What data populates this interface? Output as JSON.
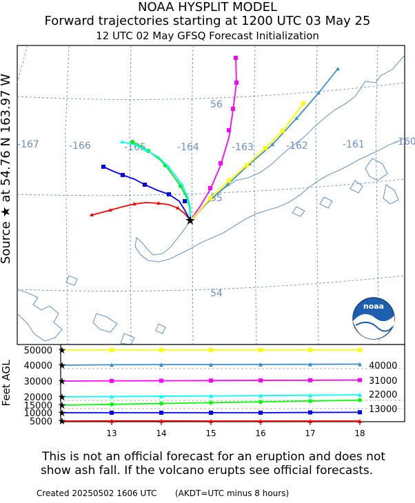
{
  "header": {
    "title_line1": "NOAA HYSPLIT MODEL",
    "title_line2": "Forward trajectories starting at 1200 UTC 03 May 25",
    "title_line3": "12 UTC 02 May    GFSQ  Forecast Initialization"
  },
  "side_label": "Source ★  at   54.76 N  163.97 W",
  "map": {
    "lon_labels": [
      "-167",
      "-166",
      "-165",
      "-164",
      "-163",
      "-162",
      "-161",
      "-160"
    ],
    "lat_labels": [
      "56",
      "55",
      "54"
    ],
    "logo_text": "noaa"
  },
  "chart_data": {
    "type": "line",
    "panel": "height",
    "x": [
      12,
      13,
      14,
      15,
      16,
      17,
      18
    ],
    "x_ticks": [
      "13",
      "14",
      "15",
      "16",
      "17",
      "18"
    ],
    "y_axis_label": "Feet AGL",
    "y_ticks": [
      "50000",
      "40000",
      "30000",
      "20000",
      "15000",
      "10000",
      "5000"
    ],
    "right_labels": [
      "40000",
      "31000",
      "22000",
      "13000"
    ],
    "series": [
      {
        "color": "#ff0000",
        "marker": "triangle",
        "values": [
          5000,
          5100,
          5100,
          5000,
          5000,
          4900,
          4800
        ]
      },
      {
        "color": "#0000ff",
        "marker": "square",
        "values": [
          10000,
          10000,
          10000,
          10000,
          10000,
          10200,
          10300
        ]
      },
      {
        "color": "#00ff00",
        "marker": "circle",
        "values": [
          15000,
          15500,
          16000,
          16500,
          17000,
          17500,
          18000
        ]
      },
      {
        "color": "#00ffff",
        "marker": "triangle",
        "values": [
          20000,
          20200,
          20400,
          20600,
          20800,
          21000,
          21300
        ]
      },
      {
        "color": "#ff00ff",
        "marker": "square",
        "values": [
          30000,
          30100,
          30200,
          30300,
          30400,
          30500,
          30600
        ]
      },
      {
        "color": "#3a8fc7",
        "marker": "triangle",
        "values": [
          40000,
          40300,
          40400,
          40400,
          40500,
          40600,
          40700
        ]
      },
      {
        "color": "#ffff00",
        "marker": "square",
        "values": [
          50000,
          50000,
          50000,
          50000,
          50000,
          50000,
          50000
        ]
      }
    ]
  },
  "footer": {
    "note_line1": "This is not an official forecast for an eruption and does not",
    "note_line2": "show ash fall. If the volcano erupts see official forecasts.",
    "created": "Created 20250502 1606 UTC",
    "tz_note": "(AKDT=UTC minus 8 hours)"
  }
}
